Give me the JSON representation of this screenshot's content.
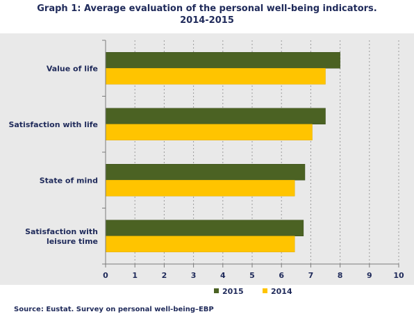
{
  "title_line1": "Graph 1: Average evaluation of the personal well-being indicators.",
  "title_line2": "2014-2015",
  "source": "Source: Eustat. Survey on personal well-being–EBP",
  "colors": {
    "series_2015": "#4b6223",
    "series_2014": "#ffc400",
    "axis": "#7a7a7a",
    "grid": "#9a9a9a",
    "background": "#e9e9e9"
  },
  "chart_data": {
    "type": "bar",
    "orientation": "horizontal",
    "title": "Graph 1: Average evaluation of the personal well-being indicators. 2014-2015",
    "xlabel": "",
    "ylabel": "",
    "xlim": [
      0,
      10
    ],
    "x_ticks": [
      "0",
      "1",
      "2",
      "3",
      "4",
      "5",
      "6",
      "7",
      "8",
      "9",
      "10"
    ],
    "grid": "vertical dashed",
    "legend_position": "bottom",
    "categories": [
      [
        "Value of life"
      ],
      [
        "Satisfaction with life"
      ],
      [
        "State of mind"
      ],
      [
        "Satisfaction with",
        "leisure time"
      ]
    ],
    "series": [
      {
        "name": "2015",
        "values": [
          8.0,
          7.5,
          6.8,
          6.75
        ]
      },
      {
        "name": "2014",
        "values": [
          7.5,
          7.05,
          6.45,
          6.45
        ]
      }
    ]
  }
}
